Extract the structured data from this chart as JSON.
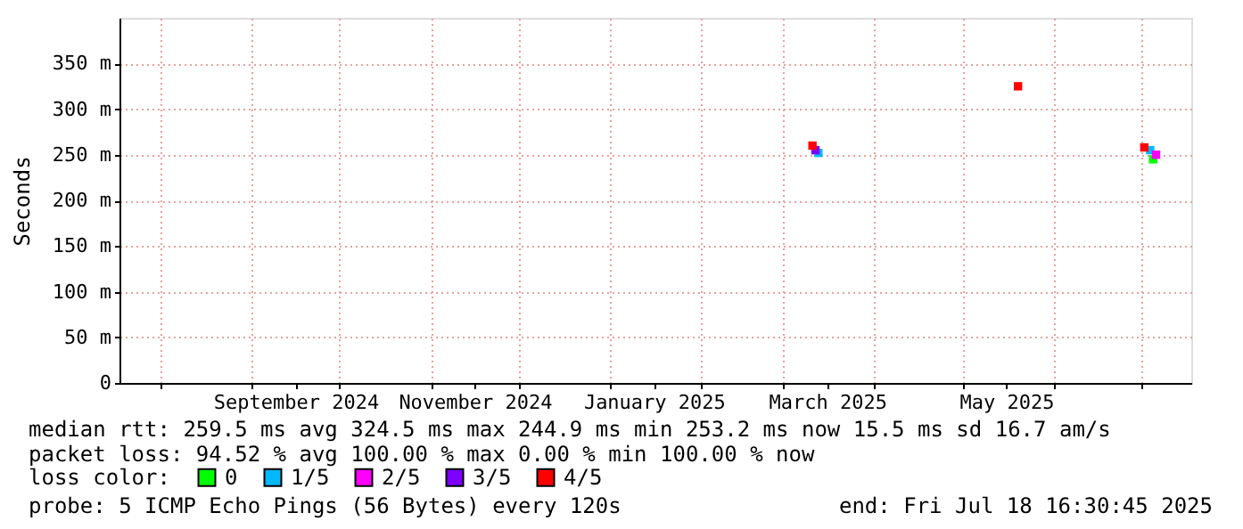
{
  "chart_data": {
    "type": "scatter",
    "ylabel": "Seconds",
    "legend_title": "loss color:",
    "legend": "bottom",
    "grid": true,
    "marker": "square",
    "xlim": [
      "2024-07-18",
      "2025-07-18"
    ],
    "xticks": [
      {
        "value": "2024-08-01",
        "label": null
      },
      {
        "value": "2024-09-01",
        "label": null
      },
      {
        "value": "2024-09-16",
        "label": "September 2024"
      },
      {
        "value": "2024-10-01",
        "label": null
      },
      {
        "value": "2024-11-01",
        "label": null
      },
      {
        "value": "2024-11-16",
        "label": "November 2024"
      },
      {
        "value": "2024-12-01",
        "label": null
      },
      {
        "value": "2025-01-01",
        "label": null
      },
      {
        "value": "2025-01-16",
        "label": "January 2025"
      },
      {
        "value": "2025-02-01",
        "label": null
      },
      {
        "value": "2025-03-01",
        "label": null
      },
      {
        "value": "2025-03-16",
        "label": "March 2025"
      },
      {
        "value": "2025-04-01",
        "label": null
      },
      {
        "value": "2025-05-01",
        "label": null
      },
      {
        "value": "2025-05-16",
        "label": "May 2025"
      },
      {
        "value": "2025-06-01",
        "label": null
      },
      {
        "value": "2025-07-01",
        "label": null
      }
    ],
    "ylim": [
      0,
      400
    ],
    "yticks": [
      0,
      {
        "value": 50,
        "label": "50 m"
      },
      {
        "value": 100,
        "label": "100 m"
      },
      {
        "value": 150,
        "label": "150 m"
      },
      {
        "value": 200,
        "label": "200 m"
      },
      {
        "value": 250,
        "label": "250 m"
      },
      {
        "value": 300,
        "label": "300 m"
      },
      {
        "value": 350,
        "label": "350 m"
      }
    ],
    "series": [
      {
        "name": "0",
        "color": "#00ff00",
        "x": [
          "2025-07-05"
        ],
        "values": [
          245
        ]
      },
      {
        "name": "1/5",
        "color": "#00b8ff",
        "x": [
          "2025-03-13",
          "2025-07-04"
        ],
        "values": [
          252,
          255
        ]
      },
      {
        "name": "2/5",
        "color": "#ff00ff",
        "x": [
          "2025-07-06"
        ],
        "values": [
          250
        ]
      },
      {
        "name": "3/5",
        "color": "#7e00ff",
        "x": [
          "2025-03-12"
        ],
        "values": [
          255
        ]
      },
      {
        "name": "4/5",
        "color": "#ff0000",
        "x": [
          "2025-03-11",
          "2025-05-20",
          "2025-07-02"
        ],
        "values": [
          260,
          325,
          258
        ]
      }
    ],
    "annotations": [
      "median rtt:  259.5 ms avg  324.5 ms max  244.9 ms min  253.2 ms now  15.5 ms sd  16.7   am/s",
      "packet loss: 94.52 % avg  100.00 % max  0.00 % min  100.00 % now",
      "probe:       5 ICMP Echo Pings (56 Bytes) every 120s",
      "end: Fri Jul 18 16:30:45 2025"
    ]
  }
}
